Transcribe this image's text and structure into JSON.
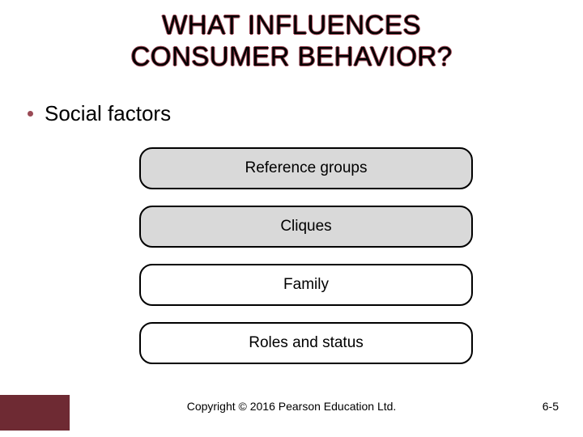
{
  "title_line1": "WHAT INFLUENCES",
  "title_line2": "CONSUMER BEHAVIOR?",
  "bullet_text": "Social factors",
  "items": [
    {
      "label": "Reference groups",
      "shaded": true
    },
    {
      "label": "Cliques",
      "shaded": true
    },
    {
      "label": "Family",
      "shaded": false
    },
    {
      "label": "Roles and status",
      "shaded": false
    }
  ],
  "copyright": "Copyright © 2016 Pearson Education Ltd.",
  "page_number": "6-5",
  "styling": {
    "slide_width": 720,
    "slide_height": 540,
    "background_color": "#ffffff",
    "title_color": "#000000",
    "title_outline_color": "#a24a58",
    "title_fontsize": 33,
    "bullet_dot_color": "#9a4a55",
    "bullet_fontsize": 26,
    "pill_width": 412,
    "pill_height": 52,
    "pill_border_color": "#000000",
    "pill_border_width": 2.5,
    "pill_border_radius": 16,
    "pill_gap": 20,
    "pill_shaded_fill": "#d9d9d9",
    "pill_plain_fill": "#ffffff",
    "pill_fontsize": 19,
    "footer_fontsize": 14,
    "brand_block_color": "#6e2a33"
  }
}
